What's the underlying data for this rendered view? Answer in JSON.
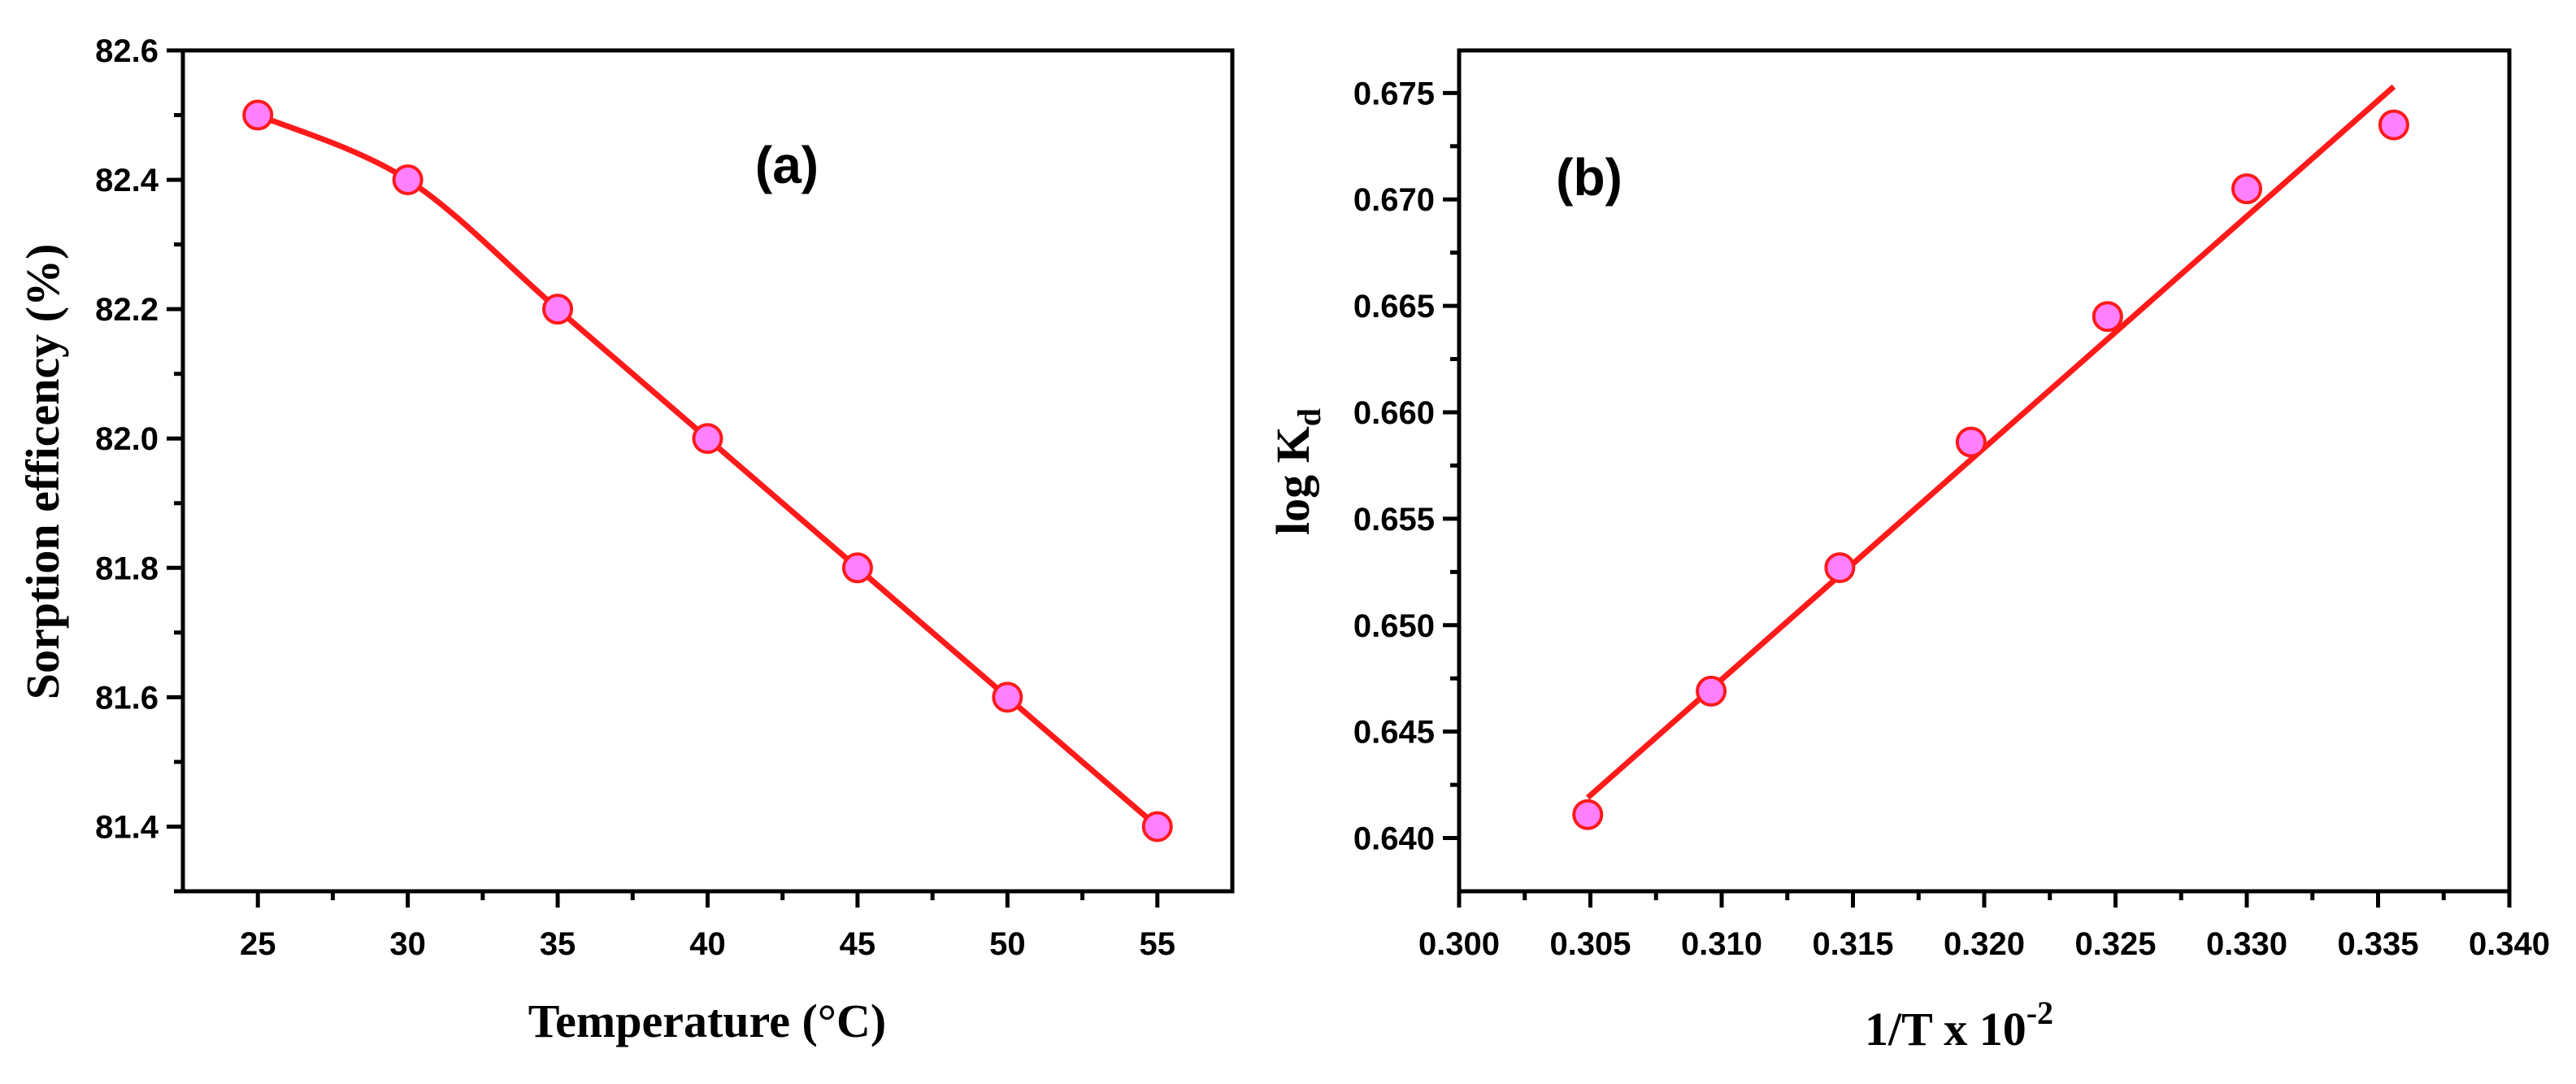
{
  "colors": {
    "line": "#ff1a1a",
    "marker_fill": "#ff80ff",
    "marker_edge": "#ff1a1a",
    "axis": "#000000"
  },
  "chart_data": [
    {
      "type": "line",
      "panel_label": "(a)",
      "xlabel": "Temperature (°C)",
      "ylabel": "Sorption efficency (%)",
      "xlim": [
        22.5,
        57.5
      ],
      "ylim": [
        81.3,
        82.6
      ],
      "xticks": [
        25,
        30,
        35,
        40,
        45,
        50,
        55
      ],
      "xtick_labels": [
        "25",
        "30",
        "35",
        "40",
        "45",
        "50",
        "55"
      ],
      "yticks": [
        81.4,
        81.6,
        81.8,
        82.0,
        82.2,
        82.4,
        82.6
      ],
      "ytick_labels": [
        "81.4",
        "81.6",
        "81.8",
        "82.0",
        "82.2",
        "82.4",
        "82.6"
      ],
      "x": [
        25,
        30,
        35,
        40,
        45,
        50,
        55
      ],
      "y": [
        82.5,
        82.4,
        82.2,
        82.0,
        81.8,
        81.6,
        81.4
      ],
      "curve": "smooth"
    },
    {
      "type": "scatter",
      "panel_label": "(b)",
      "xlabel_main": "1/T x 10",
      "xlabel_sup": "-2",
      "ylabel_main": "log K",
      "ylabel_sub": "d",
      "xlim": [
        0.3,
        0.34
      ],
      "ylim": [
        0.6375,
        0.677
      ],
      "xticks": [
        0.3,
        0.305,
        0.31,
        0.315,
        0.32,
        0.325,
        0.33,
        0.335,
        0.34
      ],
      "xtick_labels": [
        "0.300",
        "0.305",
        "0.310",
        "0.315",
        "0.320",
        "0.325",
        "0.330",
        "0.335",
        "0.340"
      ],
      "yticks": [
        0.64,
        0.645,
        0.65,
        0.655,
        0.66,
        0.665,
        0.67,
        0.675
      ],
      "ytick_labels": [
        "0.640",
        "0.645",
        "0.650",
        "0.655",
        "0.660",
        "0.665",
        "0.670",
        "0.675"
      ],
      "x": [
        0.3049,
        0.3096,
        0.3145,
        0.3195,
        0.3247,
        0.33,
        0.3356
      ],
      "y": [
        0.6411,
        0.6469,
        0.6527,
        0.6586,
        0.6645,
        0.6705,
        0.6735
      ],
      "fit_line": {
        "x": [
          0.3049,
          0.3356
        ],
        "y": [
          0.6419,
          0.6753
        ]
      }
    }
  ]
}
